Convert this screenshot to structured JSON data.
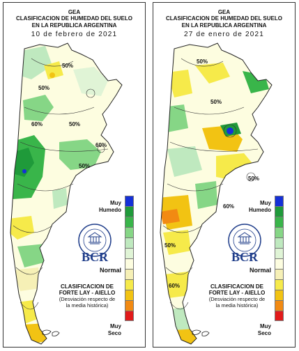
{
  "colors": {
    "muy_humedo": "#1530d8",
    "humedo_dark": "#1f9a3a",
    "humedo": "#39b54a",
    "humedo_light": "#86d686",
    "humedo_pale": "#bfe9bf",
    "normal_humid": "#e0f4d6",
    "normal": "#fdfde0",
    "normal_dry": "#f6f0b6",
    "seco_light": "#f6ea4a",
    "seco": "#f2c313",
    "seco_dark": "#f28a12",
    "muy_seco": "#e21a1a"
  },
  "panels": [
    {
      "id": "left",
      "org": "GEA",
      "title_line1": "CLASIFICACION DE HUMEDAD DEL SUELO",
      "title_line2": "EN LA REPUBLICA ARGENTINA",
      "date": "10 de febrero de 2021",
      "contour_labels": [
        "50%",
        "50%",
        "60%",
        "50%",
        "60%",
        "50%"
      ],
      "legend": {
        "muy_humedo_line1": "Muy",
        "muy_humedo_line2": "Humedo",
        "normal": "Normal",
        "muy_seco_line1": "Muy",
        "muy_seco_line2": "Seco"
      },
      "logo_text": "BCR",
      "classification_line1": "CLASIFICACION DE",
      "classification_line2": "FORTE LAY - AIELLO",
      "classification_line3": "(Desviación respecto de",
      "classification_line4": "la media histórica)"
    },
    {
      "id": "right",
      "org": "GEA",
      "title_line1": "CLASIFICACION DE HUMEDAD DEL SUELO",
      "title_line2": "EN LA REPUBLICA ARGENTINA",
      "date": "27 de enero de 2021",
      "contour_labels": [
        "50%",
        "50%",
        "50%",
        "60%",
        "50%",
        "60%"
      ],
      "legend": {
        "muy_humedo_line1": "Muy",
        "muy_humedo_line2": "Humedo",
        "normal": "Normal",
        "muy_seco_line1": "Muy",
        "muy_seco_line2": "Seco"
      },
      "logo_text": "BCR",
      "classification_line1": "CLASIFICACION DE",
      "classification_line2": "FORTE LAY - AIELLO",
      "classification_line3": "(Desviación respecto de",
      "classification_line4": "la media histórica)"
    }
  ]
}
